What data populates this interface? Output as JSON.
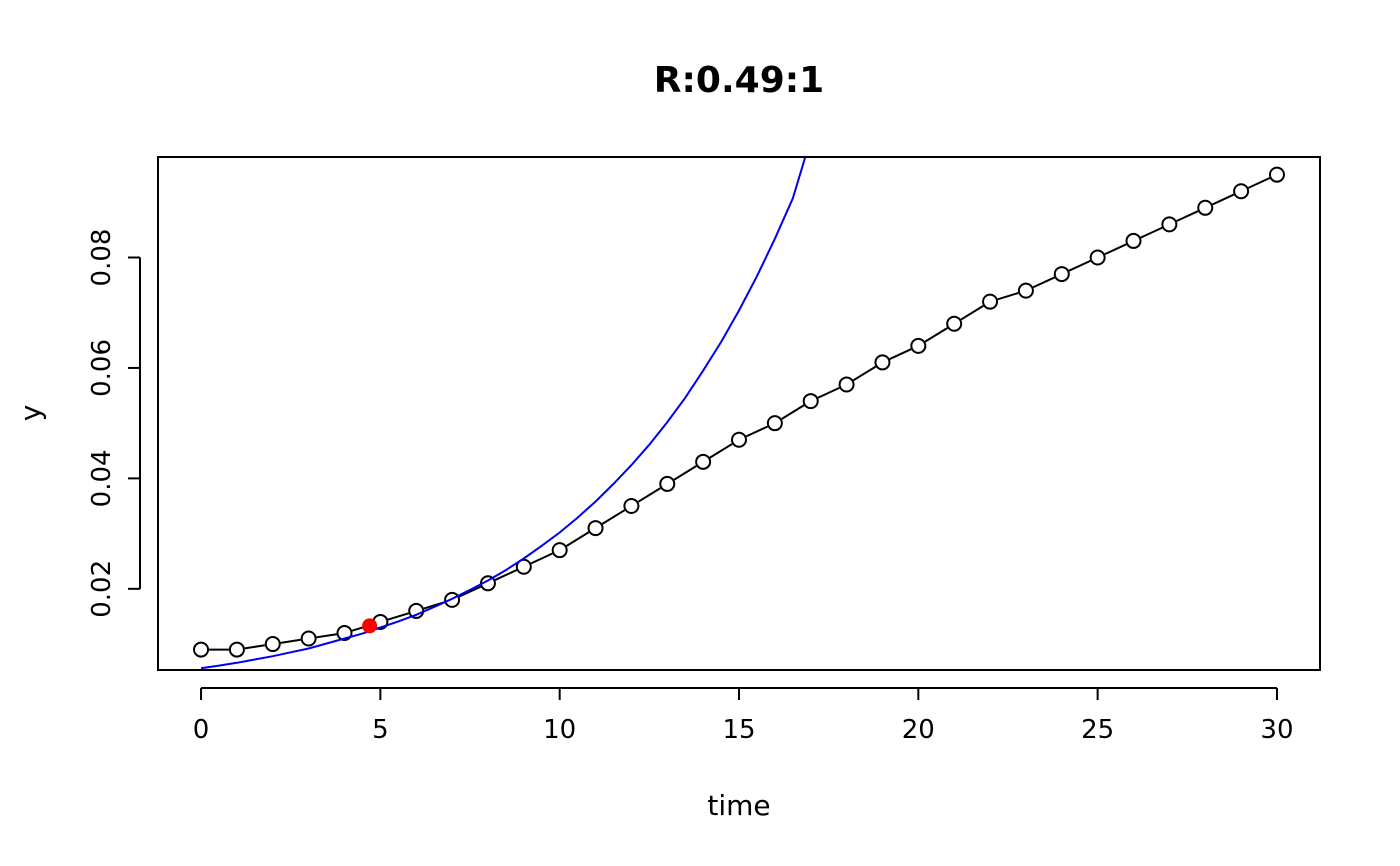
{
  "chart_data": {
    "type": "line",
    "title": "R:0.49:1",
    "xlabel": "time",
    "ylabel": "y",
    "xlim": [
      -1.2,
      31.2
    ],
    "ylim": [
      0.0053,
      0.0982
    ],
    "xticks": [
      0,
      5,
      10,
      15,
      20,
      25,
      30
    ],
    "xtick_labels": [
      "0",
      "5",
      "10",
      "15",
      "20",
      "25",
      "30"
    ],
    "yticks": [
      0.02,
      0.04,
      0.06,
      0.08
    ],
    "ytick_labels": [
      "0.02",
      "0.04",
      "0.06",
      "0.08"
    ],
    "grid": false,
    "series": [
      {
        "style": "line-with-open-circles",
        "color": "#000000",
        "x": [
          0,
          1,
          2,
          3,
          4,
          5,
          6,
          7,
          8,
          9,
          10,
          11,
          12,
          13,
          14,
          15,
          16,
          17,
          18,
          19,
          20,
          21,
          22,
          23,
          24,
          25,
          26,
          27,
          28,
          29,
          30
        ],
        "y": [
          0.009,
          0.009,
          0.01,
          0.011,
          0.012,
          0.014,
          0.016,
          0.018,
          0.021,
          0.024,
          0.027,
          0.031,
          0.035,
          0.039,
          0.043,
          0.047,
          0.05,
          0.054,
          0.057,
          0.061,
          0.064,
          0.068,
          0.072,
          0.074,
          0.077,
          0.08,
          0.083,
          0.086,
          0.089,
          0.092,
          0.095
        ]
      },
      {
        "style": "curve",
        "color": "#0000ee",
        "x": [
          0,
          0.5,
          1,
          1.5,
          2,
          2.5,
          3,
          3.5,
          4,
          4.5,
          5,
          5.5,
          6,
          6.5,
          7,
          7.5,
          8,
          8.5,
          9,
          9.5,
          10,
          10.5,
          11,
          11.5,
          12,
          12.5,
          13,
          13.5,
          14,
          14.5,
          15,
          15.5,
          16,
          16.5,
          16.85
        ],
        "y": [
          0.0056,
          0.0061,
          0.0066,
          0.0072,
          0.0078,
          0.0085,
          0.0092,
          0.0101,
          0.011,
          0.0119,
          0.013,
          0.0141,
          0.0153,
          0.0167,
          0.0182,
          0.0198,
          0.0215,
          0.0234,
          0.0255,
          0.0278,
          0.0302,
          0.0329,
          0.0358,
          0.039,
          0.0424,
          0.0461,
          0.0502,
          0.0546,
          0.0595,
          0.0647,
          0.0704,
          0.0766,
          0.0834,
          0.0907,
          0.0982
        ]
      },
      {
        "style": "filled-point",
        "color": "#ff0000",
        "x": [
          4.7
        ],
        "y": [
          0.0133
        ]
      }
    ]
  }
}
